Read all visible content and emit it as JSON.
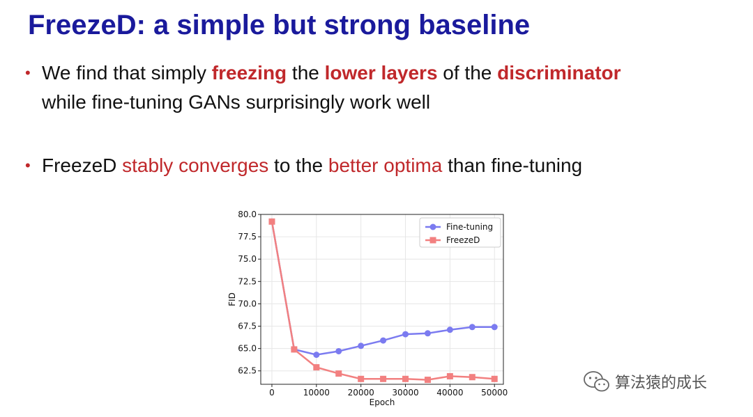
{
  "slide": {
    "title": "FreezeD: a simple but strong baseline",
    "bullet1": {
      "p1": "We find that simply ",
      "h1": "freezing",
      "p2": " the ",
      "h2": "lower layers",
      "p3": " of the ",
      "h3": "discriminator",
      "p4": "while fine-tuning GANs surprisingly work well"
    },
    "bullet2": {
      "p1": "FreezeD ",
      "h1": "stably converges",
      "p2": " to the ",
      "h2": "better optima",
      "p3": " than fine-tuning"
    },
    "bullet_marker": "•",
    "accent_color": "#c0282b",
    "title_color": "#1a1a9c"
  },
  "watermark": {
    "icon": "wechat-icon",
    "text": "算法猿的成长"
  },
  "chart_data": {
    "type": "line",
    "xlabel": "Epoch",
    "ylabel": "FID",
    "xlim": [
      -2500,
      52000
    ],
    "ylim": [
      61.0,
      80.0
    ],
    "x_ticks": [
      0,
      10000,
      20000,
      30000,
      40000,
      50000
    ],
    "y_ticks": [
      62.5,
      65.0,
      67.5,
      70.0,
      72.5,
      75.0,
      77.5,
      80.0
    ],
    "y_tick_labels": [
      "62.5",
      "65.0",
      "67.5",
      "70.0",
      "72.5",
      "75.0",
      "77.5",
      "80.0"
    ],
    "grid": true,
    "legend_position": "top-right",
    "series": [
      {
        "name": "Fine-tuning",
        "color": "#7b7bf0",
        "marker": "circle",
        "x": [
          0,
          5000,
          10000,
          15000,
          20000,
          25000,
          30000,
          35000,
          40000,
          45000,
          50000
        ],
        "y": [
          79.2,
          64.9,
          64.3,
          64.7,
          65.3,
          65.9,
          66.6,
          66.7,
          67.1,
          67.4,
          67.4
        ]
      },
      {
        "name": "FreezeD",
        "color": "#f28080",
        "marker": "square",
        "x": [
          0,
          5000,
          10000,
          15000,
          20000,
          25000,
          30000,
          35000,
          40000,
          45000,
          50000
        ],
        "y": [
          79.2,
          64.9,
          62.9,
          62.2,
          61.6,
          61.6,
          61.6,
          61.5,
          61.9,
          61.8,
          61.6
        ]
      }
    ]
  }
}
